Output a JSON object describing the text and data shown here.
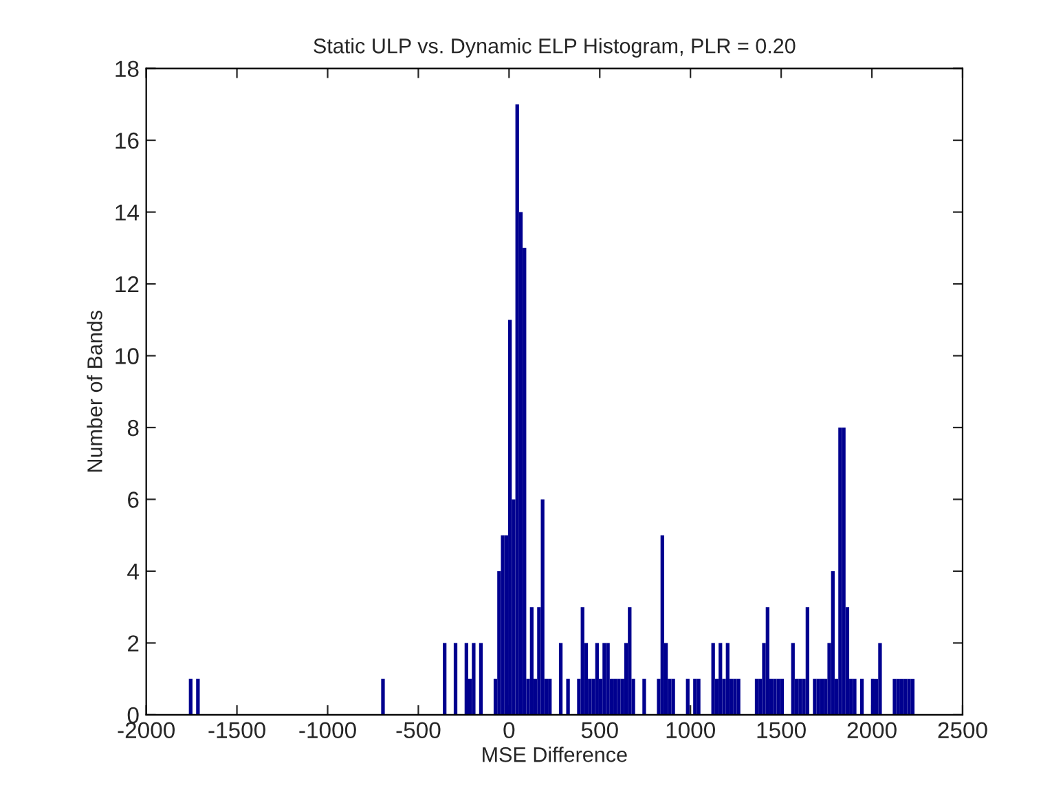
{
  "chart_data": {
    "type": "histogram",
    "title": "Static ULP vs. Dynamic ELP Histogram, PLR = 0.20",
    "xlabel": "MSE Difference",
    "ylabel": "Number of Bands",
    "color": "#00008f",
    "bins": [
      -1765,
      -1745,
      -1725,
      -1705,
      -1685,
      -1665,
      -1645,
      -1625,
      -1605,
      -1585,
      -1565,
      -1545,
      -1525,
      -1505,
      -1485,
      -1465,
      -1445,
      -1425,
      -1405,
      -1385,
      -1365,
      -1345,
      -1325,
      -1305,
      -1285,
      -1265,
      -1245,
      -1225,
      -1205,
      -1185,
      -1165,
      -1145,
      -1125,
      -1105,
      -1085,
      -1065,
      -1045,
      -1025,
      -1005,
      -985,
      -965,
      -945,
      -925,
      -905,
      -885,
      -865,
      -845,
      -825,
      -805,
      -785,
      -765,
      -745,
      -725,
      -705,
      -685,
      -665,
      -645,
      -625,
      -605,
      -585,
      -565,
      -545,
      -525,
      -505,
      -485,
      -465,
      -445,
      -425,
      -405,
      -385,
      -365,
      -345,
      -325,
      -305,
      -285,
      -265,
      -245,
      -225,
      -205,
      -185,
      -165,
      -145,
      -125,
      -105,
      -85,
      -65,
      -45,
      -25,
      -5,
      15,
      35,
      55,
      75,
      95,
      115,
      135,
      155,
      175,
      195,
      215,
      235,
      255,
      275,
      295,
      315,
      335,
      355,
      375,
      395,
      415,
      435,
      455,
      475,
      495,
      515,
      535,
      555,
      575,
      595,
      615,
      635,
      655,
      675,
      695,
      715,
      735,
      755,
      775,
      795,
      815,
      835,
      855,
      875,
      895,
      915,
      935,
      955,
      975,
      995,
      1015,
      1035,
      1055,
      1075,
      1095,
      1115,
      1135,
      1155,
      1175,
      1195,
      1215,
      1235,
      1255,
      1275,
      1295,
      1315,
      1335,
      1355,
      1375,
      1395,
      1415,
      1435,
      1455,
      1475,
      1495,
      1515,
      1535,
      1555,
      1575,
      1595,
      1615,
      1635,
      1655,
      1675,
      1695,
      1715,
      1735,
      1755,
      1775,
      1795,
      1815,
      1835,
      1855,
      1875,
      1895,
      1915,
      1935,
      1955,
      1975,
      1995,
      2015,
      2035,
      2055,
      2075,
      2095,
      2115,
      2135,
      2155,
      2175,
      2195,
      2215,
      2235
    ],
    "values": [
      1,
      0,
      1,
      0,
      0,
      0,
      0,
      0,
      0,
      0,
      0,
      0,
      0,
      0,
      0,
      0,
      0,
      0,
      0,
      0,
      0,
      0,
      0,
      0,
      0,
      0,
      0,
      0,
      0,
      0,
      0,
      0,
      0,
      0,
      0,
      0,
      0,
      0,
      0,
      0,
      0,
      0,
      0,
      0,
      0,
      0,
      0,
      0,
      0,
      0,
      0,
      0,
      0,
      1,
      0,
      0,
      0,
      0,
      0,
      0,
      0,
      0,
      0,
      0,
      0,
      0,
      0,
      0,
      0,
      0,
      2,
      0,
      0,
      2,
      0,
      0,
      2,
      1,
      2,
      0,
      2,
      0,
      0,
      0,
      1,
      4,
      5,
      5,
      11,
      6,
      17,
      14,
      13,
      1,
      3,
      1,
      3,
      6,
      1,
      1,
      0,
      0,
      2,
      0,
      1,
      0,
      0,
      1,
      3,
      2,
      1,
      1,
      2,
      1,
      2,
      2,
      1,
      1,
      1,
      1,
      2,
      3,
      1,
      0,
      0,
      1,
      0,
      0,
      0,
      1,
      5,
      2,
      1,
      1,
      0,
      0,
      0,
      1,
      0,
      1,
      1,
      0,
      0,
      0,
      2,
      1,
      2,
      1,
      2,
      1,
      1,
      1,
      0,
      0,
      0,
      0,
      1,
      1,
      2,
      3,
      1,
      1,
      1,
      1,
      0,
      0,
      2,
      1,
      1,
      1,
      3,
      0,
      1,
      1,
      1,
      1,
      2,
      4,
      1,
      8,
      8,
      3,
      1,
      1,
      0,
      1,
      0,
      0,
      1,
      1,
      2,
      0,
      0,
      0,
      1,
      1,
      1,
      1,
      1,
      1
    ],
    "xlim": [
      -2000,
      2500
    ],
    "xticks": [
      -2000,
      -1500,
      -1000,
      -500,
      0,
      500,
      1000,
      1500,
      2000,
      2500
    ],
    "ylim": [
      0,
      18
    ],
    "yticks": [
      0,
      2,
      4,
      6,
      8,
      10,
      12,
      14,
      16,
      18
    ],
    "grid": false
  }
}
